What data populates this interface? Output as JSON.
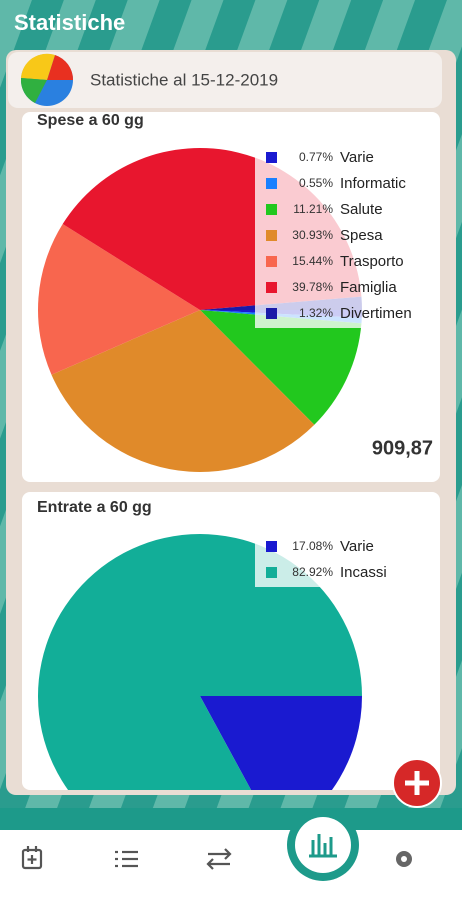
{
  "app": {
    "title": "Statistiche",
    "subtitle": "Statistiche al 15-12-2019"
  },
  "chart_data": [
    {
      "type": "pie",
      "title": "Spese a 60 gg",
      "categories": [
        "Varie",
        "Informatic",
        "Salute",
        "Spesa",
        "Trasporto",
        "Famiglia",
        "Divertimen"
      ],
      "values": [
        0.77,
        0.55,
        11.21,
        30.93,
        15.44,
        39.78,
        1.32
      ],
      "value_labels": [
        "0.77%",
        "0.55%",
        "11.21%",
        "30.93%",
        "15.44%",
        "39.78%",
        "1.32%"
      ],
      "colors": [
        "#1a1ad0",
        "#1a80ff",
        "#22c81e",
        "#e08a2a",
        "#f8664e",
        "#e8162e",
        "#1a1aa8"
      ],
      "total_label": "909,87"
    },
    {
      "type": "pie",
      "title": "Entrate a 60 gg",
      "categories": [
        "Varie",
        "Incassi"
      ],
      "values": [
        17.08,
        82.92
      ],
      "value_labels": [
        "17.08%",
        "82.92%"
      ],
      "colors": [
        "#1a1ad0",
        "#12ae98"
      ]
    }
  ]
}
